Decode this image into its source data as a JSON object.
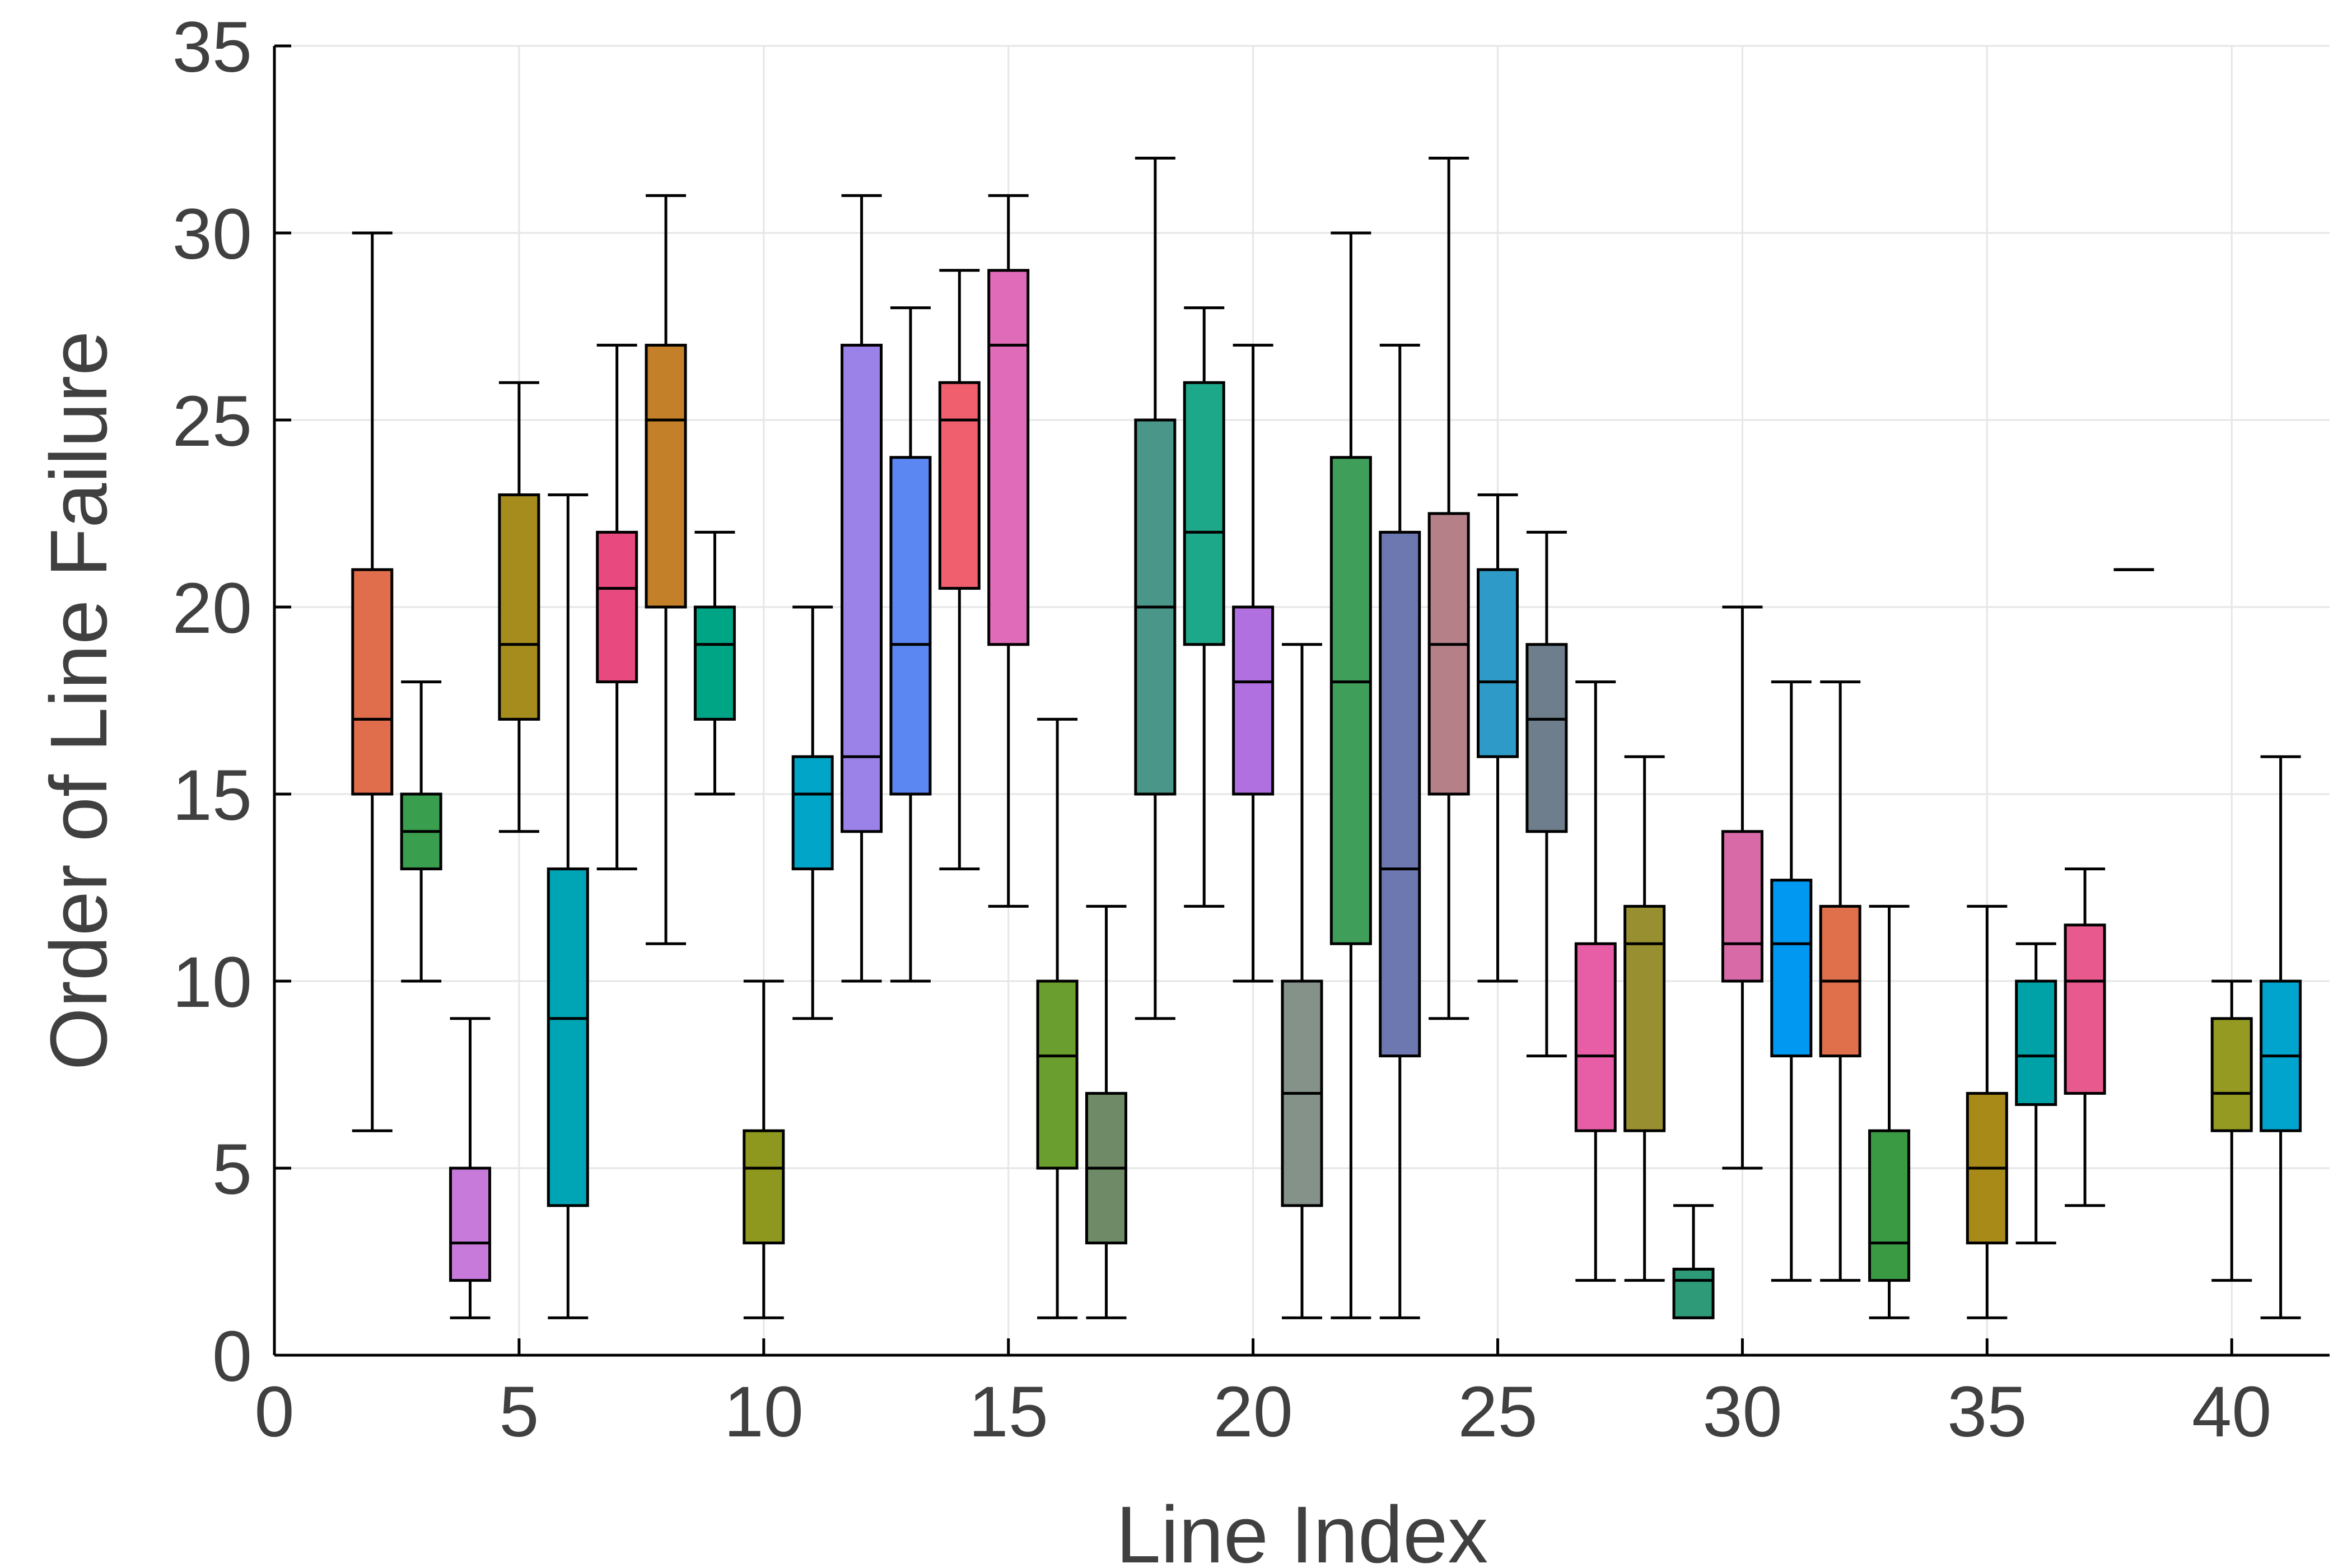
{
  "chart_data": {
    "type": "box",
    "xlabel": "Line Index",
    "ylabel": "Order of Line Failure",
    "xlim": [
      0,
      42
    ],
    "ylim": [
      0,
      35
    ],
    "xticks": [
      "0",
      "5",
      "10",
      "15",
      "20",
      "25",
      "30",
      "35",
      "40"
    ],
    "yticks": [
      "0",
      "5",
      "10",
      "15",
      "20",
      "25",
      "30",
      "35"
    ],
    "grid": true,
    "legend": "none",
    "boxes": [
      {
        "x": 2,
        "min": 6,
        "q1": 15,
        "median": 17,
        "q3": 21,
        "max": 30,
        "color": "#e06e4c"
      },
      {
        "x": 3,
        "min": 10,
        "q1": 13,
        "median": 14,
        "q3": 15,
        "max": 18,
        "color": "#3a9e4f"
      },
      {
        "x": 4,
        "min": 1,
        "q1": 2,
        "median": 3,
        "q3": 5,
        "max": 9,
        "color": "#c77ad9"
      },
      {
        "x": 5,
        "min": 14,
        "q1": 17,
        "median": 19,
        "q3": 23,
        "max": 26,
        "color": "#a68c1c"
      },
      {
        "x": 6,
        "min": 1,
        "q1": 4,
        "median": 9,
        "q3": 13,
        "max": 23,
        "color": "#00a5b5"
      },
      {
        "x": 7,
        "min": 13,
        "q1": 18,
        "median": 20.5,
        "q3": 22,
        "max": 27,
        "color": "#e84a7f"
      },
      {
        "x": 8,
        "min": 11,
        "q1": 20,
        "median": 25,
        "q3": 27,
        "max": 31,
        "color": "#c48028"
      },
      {
        "x": 9,
        "min": 15,
        "q1": 17,
        "median": 19,
        "q3": 20,
        "max": 22,
        "color": "#00a585"
      },
      {
        "x": 10,
        "min": 1,
        "q1": 3,
        "median": 5,
        "q3": 6,
        "max": 10,
        "color": "#8e981f"
      },
      {
        "x": 11,
        "min": 9,
        "q1": 13,
        "median": 15,
        "q3": 16,
        "max": 20,
        "color": "#00a5c8"
      },
      {
        "x": 12,
        "min": 10,
        "q1": 14,
        "median": 16,
        "q3": 27,
        "max": 31,
        "color": "#9b82e8"
      },
      {
        "x": 13,
        "min": 10,
        "q1": 15,
        "median": 19,
        "q3": 24,
        "max": 28,
        "color": "#5a87f2"
      },
      {
        "x": 14,
        "min": 13,
        "q1": 20.5,
        "median": 25,
        "q3": 26,
        "max": 29,
        "color": "#f05f6e"
      },
      {
        "x": 15,
        "min": 12,
        "q1": 19,
        "median": 27,
        "q3": 29,
        "max": 31,
        "color": "#e06bb8"
      },
      {
        "x": 16,
        "min": 1,
        "q1": 5,
        "median": 8,
        "q3": 10,
        "max": 17,
        "color": "#6a9e2e"
      },
      {
        "x": 17,
        "min": 1,
        "q1": 3,
        "median": 5,
        "q3": 7,
        "max": 12,
        "color": "#6e8a66"
      },
      {
        "x": 18,
        "min": 9,
        "q1": 15,
        "median": 20,
        "q3": 25,
        "max": 32,
        "color": "#4a9688"
      },
      {
        "x": 19,
        "min": 12,
        "q1": 19,
        "median": 22,
        "q3": 26,
        "max": 28,
        "color": "#1ea88a"
      },
      {
        "x": 20,
        "min": 10,
        "q1": 15,
        "median": 18,
        "q3": 20,
        "max": 27,
        "color": "#b070e0"
      },
      {
        "x": 21,
        "min": 1,
        "q1": 4,
        "median": 7,
        "q3": 10,
        "max": 19,
        "color": "#84928a"
      },
      {
        "x": 22,
        "min": 1,
        "q1": 11,
        "median": 18,
        "q3": 24,
        "max": 30,
        "color": "#3f9e5a"
      },
      {
        "x": 23,
        "min": 1,
        "q1": 8,
        "median": 13,
        "q3": 22,
        "max": 27,
        "color": "#6e78b0"
      },
      {
        "x": 24,
        "min": 9,
        "q1": 15,
        "median": 19,
        "q3": 22.5,
        "max": 32,
        "color": "#b58088"
      },
      {
        "x": 25,
        "min": 10,
        "q1": 16,
        "median": 18,
        "q3": 21,
        "max": 23,
        "color": "#2e9ac8"
      },
      {
        "x": 26,
        "min": 8,
        "q1": 14,
        "median": 17,
        "q3": 19,
        "max": 22,
        "color": "#6e7e8c"
      },
      {
        "x": 27,
        "min": 2,
        "q1": 6,
        "median": 8,
        "q3": 11,
        "max": 18,
        "color": "#e85ea6"
      },
      {
        "x": 28,
        "min": 2,
        "q1": 6,
        "median": 11,
        "q3": 12,
        "max": 16,
        "color": "#989030"
      },
      {
        "x": 29,
        "min": 1,
        "q1": 1,
        "median": 2,
        "q3": 2.3,
        "max": 4,
        "color": "#2e9a78"
      },
      {
        "x": 30,
        "min": 5,
        "q1": 10,
        "median": 11,
        "q3": 14,
        "max": 20,
        "color": "#d86aa8"
      },
      {
        "x": 31,
        "min": 2,
        "q1": 8,
        "median": 11,
        "q3": 12.7,
        "max": 18,
        "color": "#0098f0"
      },
      {
        "x": 32,
        "min": 2,
        "q1": 8,
        "median": 10,
        "q3": 12,
        "max": 18,
        "color": "#e0704c"
      },
      {
        "x": 33,
        "min": 1,
        "q1": 2,
        "median": 3,
        "q3": 6,
        "max": 12,
        "color": "#3a9a44"
      },
      {
        "x": 35,
        "min": 1,
        "q1": 3,
        "median": 5,
        "q3": 7,
        "max": 12,
        "color": "#a88a18"
      },
      {
        "x": 36,
        "min": 3,
        "q1": 6.7,
        "median": 8,
        "q3": 10,
        "max": 11,
        "color": "#00a2a8"
      },
      {
        "x": 37,
        "min": 4,
        "q1": 7,
        "median": 10,
        "q3": 11.5,
        "max": 13,
        "color": "#e85a8e"
      },
      {
        "x": 38,
        "min": 21,
        "q1": 21,
        "median": 21,
        "q3": 21,
        "max": 21,
        "color": "#e0704c"
      },
      {
        "x": 40,
        "min": 2,
        "q1": 6,
        "median": 7,
        "q3": 9,
        "max": 10,
        "color": "#949a22"
      },
      {
        "x": 41,
        "min": 1,
        "q1": 6,
        "median": 8,
        "q3": 10,
        "max": 16,
        "color": "#00a4cc"
      }
    ]
  }
}
